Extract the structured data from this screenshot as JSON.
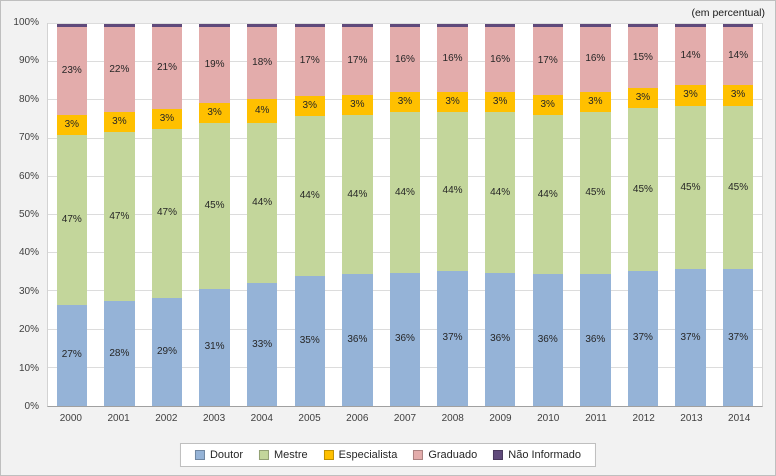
{
  "annotation": "(em percentual)",
  "colors": {
    "doutor": "#95B3D7",
    "mestre": "#C3D69B",
    "especialista": "#FFC000",
    "graduado": "#E3ACAB",
    "nao_informado": "#604A7B",
    "plot_background": "#FFFFFF",
    "chart_background": "#F2F2F2",
    "gridline": "#DCDCDC",
    "border": "#BFBFBF"
  },
  "chart_data": {
    "type": "bar",
    "stacked": true,
    "percent": true,
    "title": "",
    "xlabel": "",
    "ylabel": "",
    "ylim": [
      0,
      100
    ],
    "grid": true,
    "legend_position": "bottom",
    "annotation": "(em percentual)",
    "categories": [
      "2000",
      "2001",
      "2002",
      "2003",
      "2004",
      "2005",
      "2006",
      "2007",
      "2008",
      "2009",
      "2010",
      "2011",
      "2012",
      "2013",
      "2014"
    ],
    "yticks": [
      "0%",
      "10%",
      "20%",
      "30%",
      "40%",
      "50%",
      "60%",
      "70%",
      "80%",
      "90%",
      "100%"
    ],
    "series": [
      {
        "name": "Doutor",
        "color": "#95B3D7",
        "show_labels": true,
        "values": [
          27,
          28,
          29,
          31,
          33,
          35,
          36,
          36,
          37,
          36,
          36,
          36,
          37,
          37,
          37
        ]
      },
      {
        "name": "Mestre",
        "color": "#C3D69B",
        "show_labels": true,
        "values": [
          47,
          47,
          47,
          45,
          44,
          44,
          44,
          44,
          44,
          44,
          44,
          45,
          45,
          45,
          45
        ]
      },
      {
        "name": "Especialista",
        "color": "#FFC000",
        "show_labels": true,
        "values": [
          3,
          3,
          3,
          3,
          4,
          3,
          3,
          3,
          3,
          3,
          3,
          3,
          3,
          3,
          3
        ]
      },
      {
        "name": "Graduado",
        "color": "#E3ACAB",
        "show_labels": true,
        "values": [
          23,
          22,
          21,
          19,
          18,
          17,
          17,
          16,
          16,
          16,
          17,
          16,
          15,
          14,
          14
        ]
      },
      {
        "name": "Não Informado",
        "color": "#604A7B",
        "show_labels": false,
        "values": [
          1,
          1,
          1,
          1,
          1,
          1,
          1,
          1,
          1,
          1,
          1,
          1,
          1,
          1,
          1
        ]
      }
    ]
  }
}
